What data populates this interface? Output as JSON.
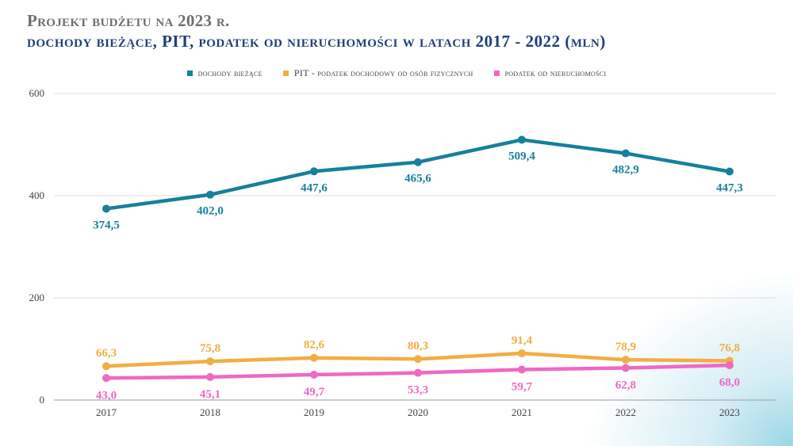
{
  "header": {
    "title": "Projekt budżetu na 2023 r.",
    "subtitle": "dochody bieżące, PIT, podatek od nieruchomości w latach 2017 - 2022 (mln)"
  },
  "chart_data": {
    "type": "line",
    "title": "Projekt budżetu na 2023 r.",
    "subtitle": "dochody bieżące, PIT, podatek od nieruchomości w latach 2017 - 2022 (mln)",
    "xlabel": "",
    "ylabel": "",
    "x": [
      "2017",
      "2018",
      "2019",
      "2020",
      "2021",
      "2022",
      "2023"
    ],
    "ylim": [
      0,
      600
    ],
    "yticks": [
      "0",
      "200",
      "400",
      "600"
    ],
    "grid": true,
    "legend_position": "top",
    "series": [
      {
        "name": "dochody bieżące",
        "color": "#17809a",
        "values": [
          374.5,
          402.0,
          447.6,
          465.6,
          509.4,
          482.9,
          447.3
        ],
        "labels": [
          "374,5",
          "402,0",
          "447,6",
          "465,6",
          "509,4",
          "482,9",
          "447,3"
        ]
      },
      {
        "name": "PIT -  podatek dochodowy od osób fizycznych",
        "color": "#f2ad42",
        "values": [
          66.3,
          75.8,
          82.6,
          80.3,
          91.4,
          78.9,
          76.8
        ],
        "labels": [
          "66,3",
          "75,8",
          "82,6",
          "80,3",
          "91,4",
          "78,9",
          "76,8"
        ]
      },
      {
        "name": "podatek od nieruchomości",
        "color": "#ef68c4",
        "values": [
          43.0,
          45.1,
          49.7,
          53.3,
          59.7,
          62.8,
          68.0
        ],
        "labels": [
          "43,0",
          "45,1",
          "49,7",
          "53,3",
          "59,7",
          "62,8",
          "68,0"
        ]
      }
    ]
  }
}
